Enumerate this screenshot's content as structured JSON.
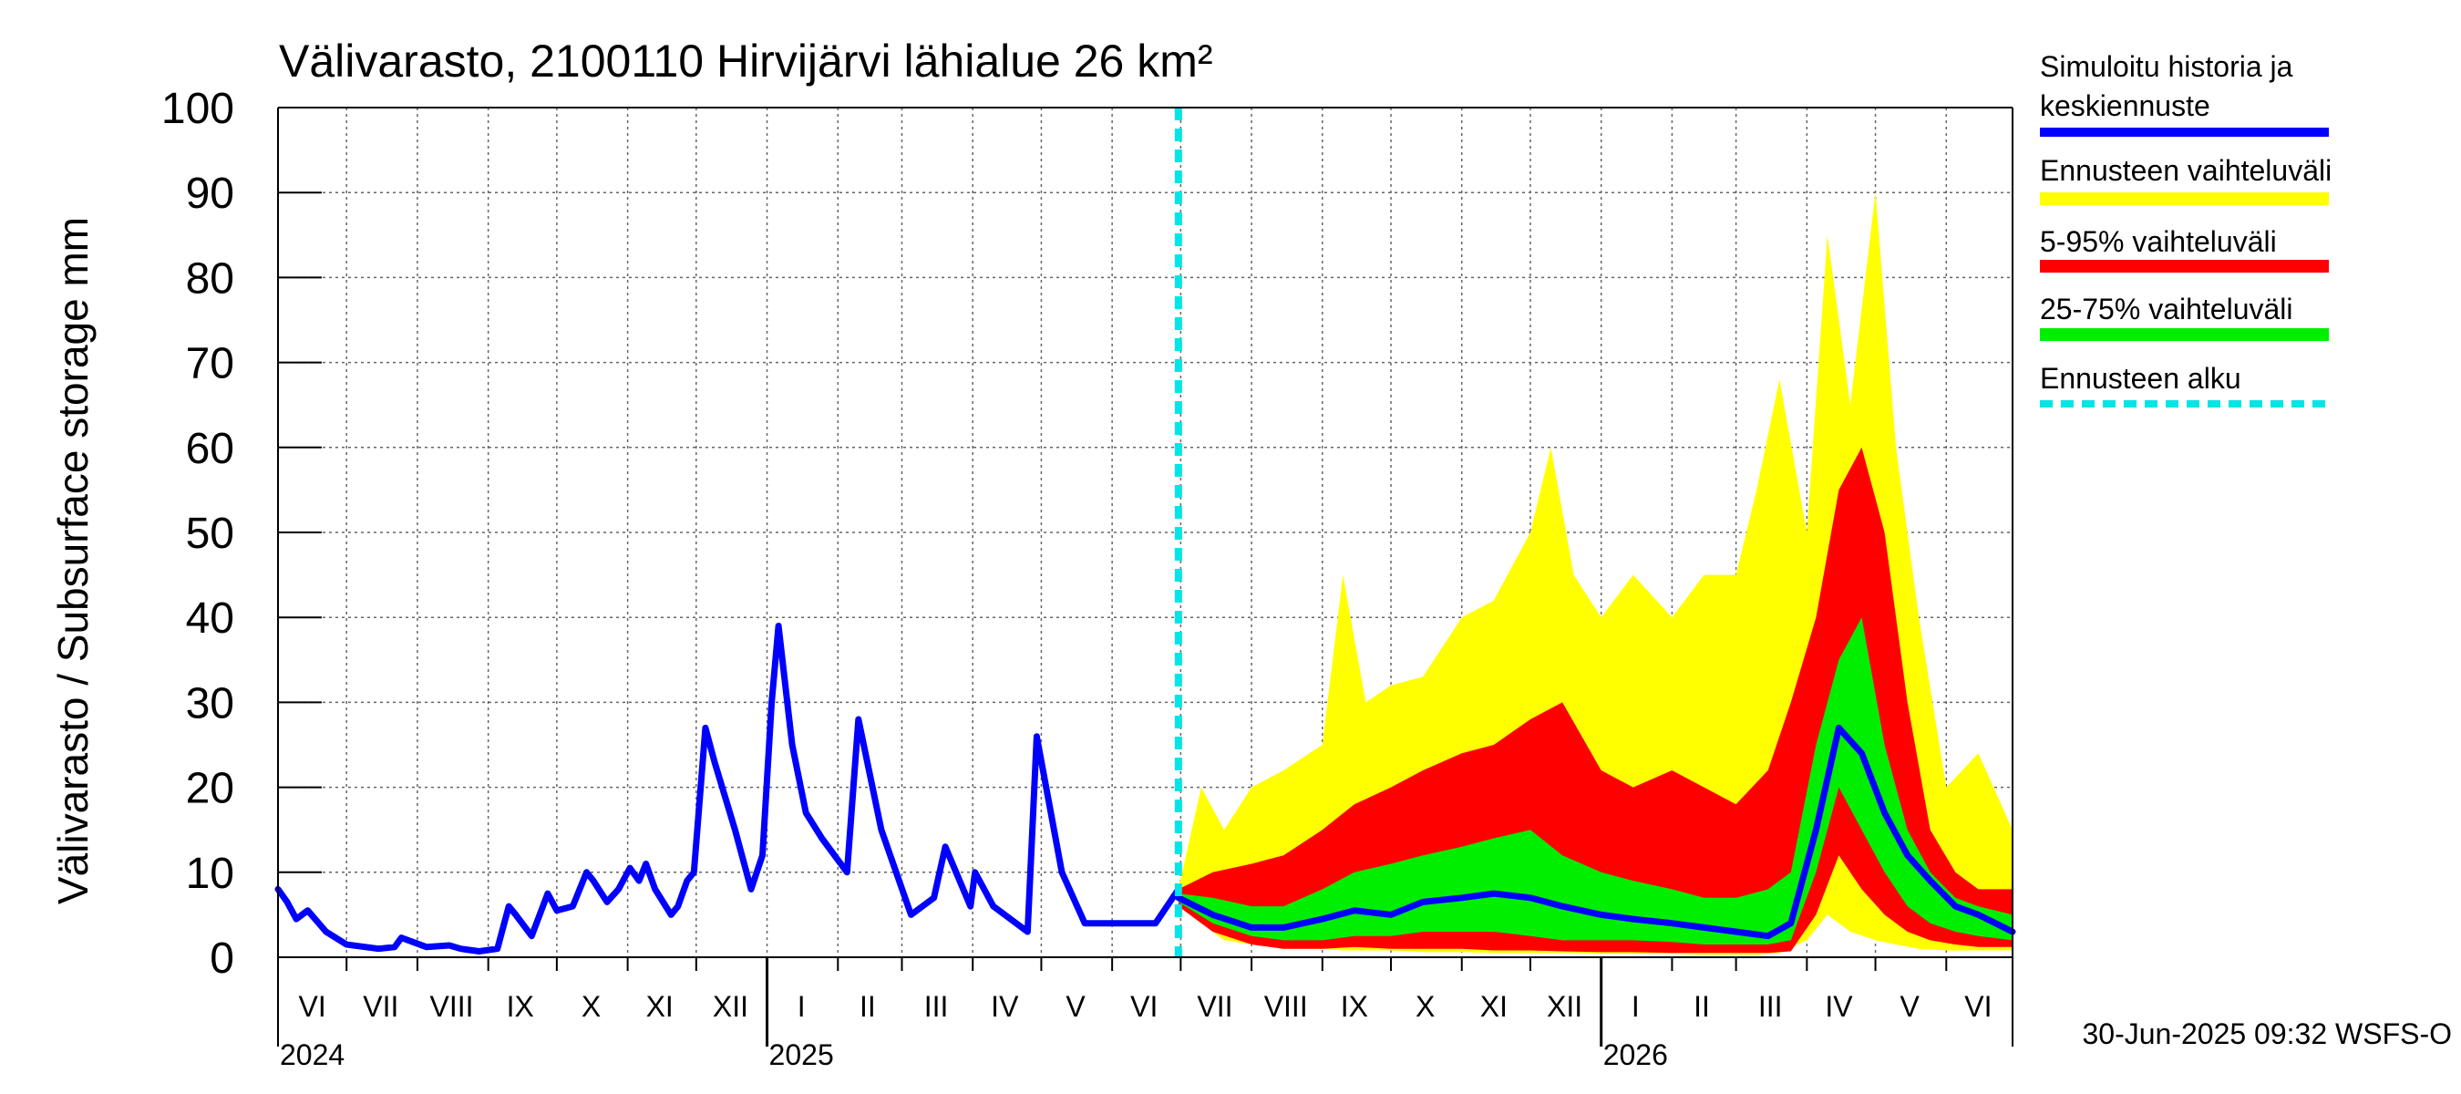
{
  "chart_data": {
    "type": "area",
    "title": "Välivarasto, 2100110 Hirvijärvi lähialue 26 km²",
    "ylabel": "Välivarasto / Subsurface storage  mm",
    "xlabel": "",
    "ylim": [
      0,
      100
    ],
    "yticks": [
      "0",
      "10",
      "20",
      "30",
      "40",
      "50",
      "60",
      "70",
      "80",
      "90",
      "100"
    ],
    "xlim": [
      "2024-06-01",
      "2026-06-30"
    ],
    "grid": true,
    "legend_position": "right",
    "month_labels": [
      {
        "label": "VI",
        "date": "2024-06-16"
      },
      {
        "label": "VII",
        "date": "2024-07-16"
      },
      {
        "label": "VIII",
        "date": "2024-08-16"
      },
      {
        "label": "IX",
        "date": "2024-09-15"
      },
      {
        "label": "X",
        "date": "2024-10-16"
      },
      {
        "label": "XI",
        "date": "2024-11-15"
      },
      {
        "label": "XII",
        "date": "2024-12-16"
      },
      {
        "label": "I",
        "date": "2025-01-16"
      },
      {
        "label": "II",
        "date": "2025-02-14"
      },
      {
        "label": "III",
        "date": "2025-03-16"
      },
      {
        "label": "IV",
        "date": "2025-04-15"
      },
      {
        "label": "V",
        "date": "2025-05-16"
      },
      {
        "label": "VI",
        "date": "2025-06-15"
      },
      {
        "label": "VII",
        "date": "2025-07-16"
      },
      {
        "label": "VIII",
        "date": "2025-08-16"
      },
      {
        "label": "IX",
        "date": "2025-09-15"
      },
      {
        "label": "X",
        "date": "2025-10-16"
      },
      {
        "label": "XI",
        "date": "2025-11-15"
      },
      {
        "label": "XII",
        "date": "2025-12-16"
      },
      {
        "label": "I",
        "date": "2026-01-16"
      },
      {
        "label": "II",
        "date": "2026-02-14"
      },
      {
        "label": "III",
        "date": "2026-03-16"
      },
      {
        "label": "IV",
        "date": "2026-04-15"
      },
      {
        "label": "V",
        "date": "2026-05-16"
      },
      {
        "label": "VI",
        "date": "2026-06-15"
      }
    ],
    "year_labels": [
      {
        "label": "2024",
        "date": "2024-06-01"
      },
      {
        "label": "2025",
        "date": "2025-01-01"
      },
      {
        "label": "2026",
        "date": "2026-01-01"
      }
    ],
    "forecast_start": "2025-06-30",
    "legend": [
      {
        "label": "Simuloitu historia ja keskiennuste",
        "color": "#0000ff",
        "style": "solid"
      },
      {
        "label": "Ennusteen vaihteluväli",
        "color": "#ffff00",
        "style": "solid"
      },
      {
        "label": "5-95% vaihteluväli",
        "color": "#ff0000",
        "style": "solid"
      },
      {
        "label": "25-75% vaihteluväli",
        "color": "#00ee00",
        "style": "solid"
      },
      {
        "label": "Ennusteen alku",
        "color": "#00e5e5",
        "style": "dashed"
      }
    ],
    "colors": {
      "history": "#0000ff",
      "range_full": "#ffff00",
      "range_5_95": "#ff0000",
      "range_25_75": "#00ee00",
      "forecast_start": "#00e5e5"
    },
    "footer": "30-Jun-2025 09:32 WSFS-O",
    "series": [
      {
        "name": "Simuloitu historia ja keskiennuste",
        "x": [
          "2024-06-01",
          "2024-06-05",
          "2024-06-09",
          "2024-06-14",
          "2024-06-22",
          "2024-07-01",
          "2024-07-15",
          "2024-07-22",
          "2024-07-25",
          "2024-08-05",
          "2024-08-15",
          "2024-08-20",
          "2024-08-28",
          "2024-09-05",
          "2024-09-10",
          "2024-09-13",
          "2024-09-20",
          "2024-09-27",
          "2024-10-01",
          "2024-10-08",
          "2024-10-14",
          "2024-10-17",
          "2024-10-23",
          "2024-10-28",
          "2024-11-02",
          "2024-11-06",
          "2024-11-09",
          "2024-11-13",
          "2024-11-20",
          "2024-11-23",
          "2024-11-27",
          "2024-11-30",
          "2024-12-05",
          "2024-12-09",
          "2024-12-18",
          "2024-12-25",
          "2024-12-30",
          "2025-01-03",
          "2025-01-06",
          "2025-01-12",
          "2025-01-18",
          "2025-01-25",
          "2025-02-05",
          "2025-02-10",
          "2025-02-20",
          "2025-03-05",
          "2025-03-15",
          "2025-03-20",
          "2025-03-31",
          "2025-04-02",
          "2025-04-10",
          "2025-04-20",
          "2025-04-25",
          "2025-04-29",
          "2025-05-10",
          "2025-05-20",
          "2025-05-31",
          "2025-06-10",
          "2025-06-20",
          "2025-06-30"
        ],
        "y": [
          8,
          6.5,
          4.5,
          5.5,
          3,
          1.5,
          1,
          1.2,
          2.3,
          1.2,
          1.4,
          1.0,
          0.7,
          1,
          6,
          5,
          2.5,
          7.5,
          5.5,
          6,
          10,
          9,
          6.5,
          8,
          10.5,
          9,
          11,
          8,
          5,
          6,
          9,
          10,
          27,
          23,
          15,
          8,
          12,
          30,
          39,
          25,
          17,
          14,
          10,
          28,
          15,
          5,
          7,
          13,
          6,
          10,
          6,
          4,
          3,
          26,
          10,
          4,
          4,
          4,
          4,
          8
        ]
      },
      {
        "name": "Keskiennuste",
        "x": [
          "2025-06-30",
          "2025-07-15",
          "2025-08-01",
          "2025-08-15",
          "2025-09-01",
          "2025-09-15",
          "2025-10-01",
          "2025-10-15",
          "2025-11-01",
          "2025-11-15",
          "2025-12-01",
          "2025-12-15",
          "2026-01-01",
          "2026-01-15",
          "2026-02-01",
          "2026-02-15",
          "2026-03-01",
          "2026-03-15",
          "2026-03-25",
          "2026-04-05",
          "2026-04-15",
          "2026-04-25",
          "2026-05-05",
          "2026-05-15",
          "2026-05-25",
          "2026-06-05",
          "2026-06-15",
          "2026-06-30"
        ],
        "y": [
          7,
          5,
          3.5,
          3.5,
          4.5,
          5.5,
          5,
          6.5,
          7,
          7.5,
          7,
          6,
          5,
          4.5,
          4,
          3.5,
          3,
          2.5,
          4,
          15,
          27,
          24,
          17,
          12,
          9,
          6,
          5,
          3
        ]
      },
      {
        "name": "Ennusteen vaihteluväli",
        "type": "band",
        "x": [
          "2025-06-30",
          "2025-07-10",
          "2025-07-20",
          "2025-08-01",
          "2025-08-15",
          "2025-09-01",
          "2025-09-10",
          "2025-09-20",
          "2025-10-01",
          "2025-10-15",
          "2025-11-01",
          "2025-11-15",
          "2025-12-01",
          "2025-12-10",
          "2025-12-20",
          "2026-01-01",
          "2026-01-15",
          "2026-02-01",
          "2026-02-15",
          "2026-03-01",
          "2026-03-10",
          "2026-03-20",
          "2026-04-01",
          "2026-04-10",
          "2026-04-20",
          "2026-05-01",
          "2026-05-10",
          "2026-05-20",
          "2026-06-01",
          "2026-06-15",
          "2026-06-30"
        ],
        "lower": [
          6,
          4,
          2,
          1.5,
          1,
          1,
          0.8,
          0.8,
          0.8,
          0.6,
          0.6,
          0.5,
          0.5,
          0.5,
          0.5,
          0.4,
          0.4,
          0.4,
          0.3,
          0.3,
          0.3,
          0.5,
          2,
          5,
          3,
          2,
          1.5,
          1,
          0.8,
          0.8,
          0.8
        ],
        "upper": [
          8,
          20,
          15,
          20,
          22,
          25,
          45,
          30,
          32,
          33,
          40,
          42,
          50,
          60,
          45,
          40,
          45,
          40,
          45,
          45,
          55,
          68,
          50,
          85,
          65,
          90,
          60,
          40,
          20,
          24,
          15
        ]
      },
      {
        "name": "5-95% vaihteluväli",
        "type": "band",
        "x": [
          "2025-06-30",
          "2025-07-15",
          "2025-08-01",
          "2025-08-15",
          "2025-09-01",
          "2025-09-15",
          "2025-10-01",
          "2025-10-15",
          "2025-11-01",
          "2025-11-15",
          "2025-12-01",
          "2025-12-15",
          "2026-01-01",
          "2026-01-15",
          "2026-02-01",
          "2026-02-15",
          "2026-03-01",
          "2026-03-15",
          "2026-03-25",
          "2026-04-05",
          "2026-04-15",
          "2026-04-25",
          "2026-05-05",
          "2026-05-15",
          "2026-05-25",
          "2026-06-05",
          "2026-06-15",
          "2026-06-30"
        ],
        "lower": [
          6,
          3,
          1.5,
          1,
          1,
          1.2,
          1,
          1,
          1,
          0.8,
          0.8,
          0.7,
          0.6,
          0.6,
          0.5,
          0.5,
          0.5,
          0.5,
          0.7,
          5,
          12,
          8,
          5,
          3,
          2,
          1.5,
          1.2,
          1.2
        ],
        "upper": [
          8,
          10,
          11,
          12,
          15,
          18,
          20,
          22,
          24,
          25,
          28,
          30,
          22,
          20,
          22,
          20,
          18,
          22,
          30,
          40,
          55,
          60,
          50,
          30,
          15,
          10,
          8,
          8
        ]
      },
      {
        "name": "25-75% vaihteluväli",
        "type": "band",
        "x": [
          "2025-06-30",
          "2025-07-15",
          "2025-08-01",
          "2025-08-15",
          "2025-09-01",
          "2025-09-15",
          "2025-10-01",
          "2025-10-15",
          "2025-11-01",
          "2025-11-15",
          "2025-12-01",
          "2025-12-15",
          "2026-01-01",
          "2026-01-15",
          "2026-02-01",
          "2026-02-15",
          "2026-03-01",
          "2026-03-15",
          "2026-03-25",
          "2026-04-05",
          "2026-04-15",
          "2026-04-25",
          "2026-05-05",
          "2026-05-15",
          "2026-05-25",
          "2026-06-05",
          "2026-06-15",
          "2026-06-30"
        ],
        "lower": [
          6.5,
          4,
          2.5,
          2,
          2,
          2.5,
          2.5,
          3,
          3,
          3,
          2.5,
          2,
          2,
          2,
          1.8,
          1.5,
          1.5,
          1.5,
          2,
          10,
          20,
          15,
          10,
          6,
          4,
          3,
          2.5,
          2
        ],
        "upper": [
          7.5,
          7,
          6,
          6,
          8,
          10,
          11,
          12,
          13,
          14,
          15,
          12,
          10,
          9,
          8,
          7,
          7,
          8,
          10,
          25,
          35,
          40,
          25,
          15,
          10,
          7,
          6,
          5
        ]
      }
    ]
  }
}
